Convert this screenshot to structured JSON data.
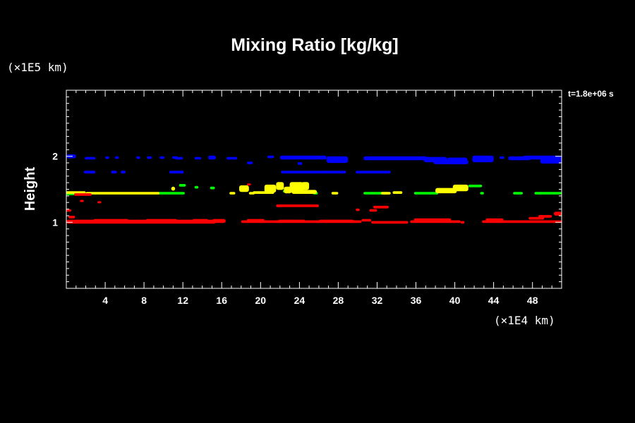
{
  "chart_data": {
    "type": "heatmap",
    "title": "Mixing Ratio [kg/kg]",
    "ylabel": "Height",
    "xlabel": "",
    "x_unit": "(×1E4 km)",
    "y_unit": "(×1E5 km)",
    "time_label": "t=1.8e+06 s",
    "xlim": [
      0,
      51
    ],
    "ylim": [
      0,
      3
    ],
    "x_ticks": [
      4,
      8,
      12,
      16,
      20,
      24,
      28,
      32,
      36,
      40,
      44,
      48
    ],
    "y_ticks": [
      1,
      2
    ],
    "x_tick_labels": [
      "4",
      "8",
      "12",
      "16",
      "20",
      "24",
      "28",
      "32",
      "36",
      "40",
      "44",
      "48"
    ],
    "y_tick_labels": [
      "1",
      "2"
    ],
    "x_minor_step": 1,
    "y_minor_step": 0.1,
    "layers": [
      {
        "color": "#0000ff",
        "segments": [
          [
            0,
            1.0,
            2.0,
            0.03
          ],
          [
            1.9,
            3.0,
            1.97,
            0.02
          ],
          [
            4.0,
            4.4,
            1.98,
            0.02
          ],
          [
            5.0,
            5.4,
            1.98,
            0.02
          ],
          [
            7.2,
            7.6,
            1.98,
            0.02
          ],
          [
            8.3,
            8.8,
            1.98,
            0.02
          ],
          [
            9.6,
            10.1,
            1.98,
            0.02
          ],
          [
            10.9,
            11.5,
            1.98,
            0.02
          ],
          [
            11.2,
            12.0,
            1.97,
            0.02
          ],
          [
            13.2,
            13.9,
            1.97,
            0.02
          ],
          [
            14.6,
            15.4,
            1.98,
            0.03
          ],
          [
            16.5,
            17.6,
            1.97,
            0.02
          ],
          [
            20.7,
            21.4,
            1.99,
            0.02
          ],
          [
            22.0,
            26.8,
            1.98,
            0.03
          ],
          [
            26.8,
            29.0,
            1.95,
            0.05
          ],
          [
            30.6,
            37.2,
            1.97,
            0.03
          ],
          [
            36.8,
            39.2,
            1.95,
            0.04
          ],
          [
            39.2,
            41.3,
            1.93,
            0.05
          ],
          [
            41.8,
            44.0,
            1.96,
            0.05
          ],
          [
            44.6,
            45.1,
            1.98,
            0.02
          ],
          [
            45.5,
            47.8,
            1.97,
            0.03
          ],
          [
            47.0,
            51.0,
            1.98,
            0.03
          ],
          [
            48.8,
            51.0,
            1.93,
            0.04
          ],
          [
            37.8,
            41.4,
            1.91,
            0.03
          ],
          [
            18.6,
            19.2,
            1.9,
            0.02
          ],
          [
            23.8,
            24.3,
            1.89,
            0.02
          ],
          [
            1.8,
            3.0,
            1.76,
            0.02
          ],
          [
            4.6,
            5.2,
            1.76,
            0.02
          ],
          [
            5.6,
            6.1,
            1.76,
            0.02
          ],
          [
            10.6,
            12.1,
            1.76,
            0.02
          ],
          [
            22.1,
            28.8,
            1.76,
            0.02
          ],
          [
            29.8,
            33.4,
            1.76,
            0.02
          ],
          [
            26.4,
            26.9,
            1.76,
            0.02
          ]
        ]
      },
      {
        "color": "#00ff00",
        "segments": [
          [
            0,
            2.0,
            1.43,
            0.02
          ],
          [
            9.4,
            12.2,
            1.44,
            0.02
          ],
          [
            11.6,
            12.3,
            1.56,
            0.02
          ],
          [
            13.2,
            13.6,
            1.53,
            0.02
          ],
          [
            18.2,
            18.6,
            1.53,
            0.02
          ],
          [
            22.3,
            22.8,
            1.47,
            0.02
          ],
          [
            25.4,
            25.9,
            1.44,
            0.02
          ],
          [
            30.6,
            33.2,
            1.44,
            0.02
          ],
          [
            35.8,
            38.3,
            1.44,
            0.02
          ],
          [
            41.4,
            42.8,
            1.55,
            0.02
          ],
          [
            42.6,
            43.0,
            1.44,
            0.02
          ],
          [
            46.0,
            47.0,
            1.44,
            0.02
          ],
          [
            48.2,
            51.0,
            1.44,
            0.02
          ],
          [
            14.8,
            15.3,
            1.52,
            0.02
          ]
        ]
      },
      {
        "color": "#ffff00",
        "segments": [
          [
            0,
            2.0,
            1.45,
            0.02
          ],
          [
            2.0,
            9.6,
            1.44,
            0.02
          ],
          [
            10.8,
            11.2,
            1.51,
            0.03
          ],
          [
            17.8,
            18.8,
            1.51,
            0.05
          ],
          [
            16.8,
            17.4,
            1.44,
            0.02
          ],
          [
            18.8,
            19.4,
            1.44,
            0.02
          ],
          [
            19.2,
            21.4,
            1.45,
            0.02
          ],
          [
            20.4,
            21.6,
            1.51,
            0.06
          ],
          [
            21.6,
            22.4,
            1.55,
            0.06
          ],
          [
            22.4,
            23.2,
            1.49,
            0.05
          ],
          [
            23.0,
            24.4,
            1.53,
            0.08
          ],
          [
            24.2,
            25.0,
            1.55,
            0.06
          ],
          [
            23.2,
            25.8,
            1.46,
            0.03
          ],
          [
            27.3,
            28.0,
            1.44,
            0.02
          ],
          [
            32.4,
            33.4,
            1.44,
            0.02
          ],
          [
            33.6,
            34.6,
            1.45,
            0.02
          ],
          [
            38.0,
            40.2,
            1.48,
            0.04
          ],
          [
            39.8,
            41.4,
            1.52,
            0.05
          ]
        ]
      },
      {
        "color": "#ff0000",
        "segments": [
          [
            0,
            15.4,
            1.01,
            0.03
          ],
          [
            2.8,
            6.4,
            1.03,
            0.02
          ],
          [
            8.2,
            11.4,
            1.03,
            0.02
          ],
          [
            13.0,
            14.6,
            1.03,
            0.02
          ],
          [
            15.0,
            16.4,
            1.02,
            0.03
          ],
          [
            18.0,
            30.4,
            1.01,
            0.02
          ],
          [
            18.6,
            20.4,
            1.03,
            0.02
          ],
          [
            21.8,
            24.6,
            1.02,
            0.02
          ],
          [
            26.0,
            29.6,
            1.02,
            0.02
          ],
          [
            30.4,
            31.4,
            1.03,
            0.02
          ],
          [
            31.4,
            35.2,
            1.0,
            0.02
          ],
          [
            35.4,
            40.6,
            1.01,
            0.02
          ],
          [
            35.8,
            39.6,
            1.04,
            0.02
          ],
          [
            40.6,
            41.0,
            1.0,
            0.02
          ],
          [
            42.8,
            51.0,
            1.01,
            0.02
          ],
          [
            43.2,
            45.0,
            1.04,
            0.02
          ],
          [
            47.6,
            49.2,
            1.06,
            0.02
          ],
          [
            48.6,
            50.0,
            1.09,
            0.02
          ],
          [
            50.2,
            51.0,
            1.13,
            0.03
          ],
          [
            0.2,
            0.9,
            1.08,
            0.02
          ],
          [
            0,
            0.5,
            1.18,
            0.02
          ],
          [
            0.8,
            2.6,
            1.42,
            0.02
          ],
          [
            1.4,
            1.8,
            1.33,
            0.01
          ],
          [
            3.2,
            3.6,
            1.31,
            0.01
          ],
          [
            21.6,
            26.0,
            1.25,
            0.02
          ],
          [
            29.8,
            30.2,
            1.19,
            0.02
          ],
          [
            31.2,
            32.0,
            1.18,
            0.02
          ],
          [
            31.6,
            33.2,
            1.23,
            0.02
          ],
          [
            18.6,
            19.0,
            1.58,
            0.01
          ]
        ]
      }
    ]
  }
}
